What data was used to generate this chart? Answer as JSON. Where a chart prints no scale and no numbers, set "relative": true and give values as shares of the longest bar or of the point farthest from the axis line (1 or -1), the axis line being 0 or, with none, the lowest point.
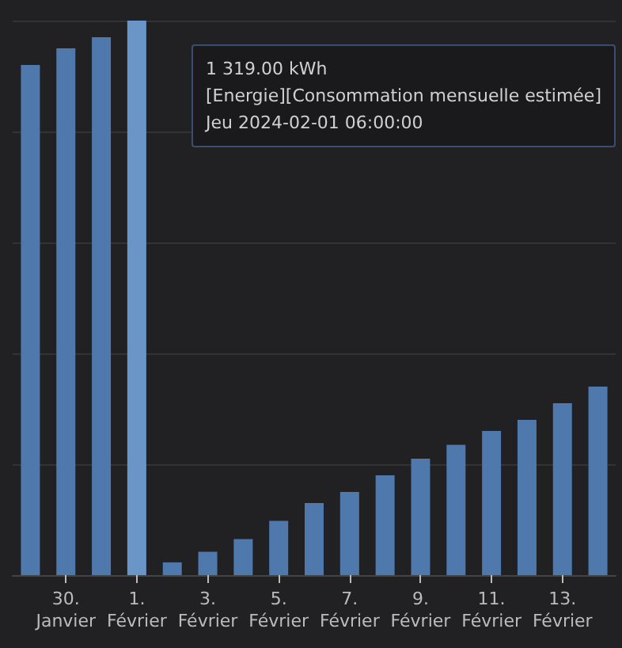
{
  "chart_data": {
    "type": "bar",
    "relative": true,
    "grid": "y",
    "categories": [
      null,
      "30.\nJanvier",
      null,
      "1.\nFévrier",
      null,
      "3.\nFévrier",
      null,
      "5.\nFévrier",
      null,
      "7.\nFévrier",
      null,
      "9.\nFévrier",
      null,
      "11.\nFévrier",
      null,
      "13.\nFévrier",
      null
    ],
    "values": [
      0.92,
      0.95,
      0.97,
      1,
      0.023,
      0.042,
      0.065,
      0.098,
      0.13,
      0.15,
      0.18,
      0.21,
      0.235,
      0.26,
      0.28,
      0.31,
      0.34
    ],
    "colors": [
      "#4f78ad",
      "#4f78ad",
      "#4f78ad",
      "#6a95c8",
      "#4f78ad",
      "#4f78ad",
      "#4f78ad",
      "#4f78ad",
      "#4f78ad",
      "#4f78ad",
      "#4f78ad",
      "#4f78ad",
      "#4f78ad",
      "#4f78ad",
      "#4f78ad",
      "#4f78ad",
      "#4f78ad"
    ],
    "annotations": [
      "1 319.00 kWh",
      "[Energie][Consommation mensuelle estimée]",
      "Jeu 2024-02-01 06:00:00"
    ]
  }
}
